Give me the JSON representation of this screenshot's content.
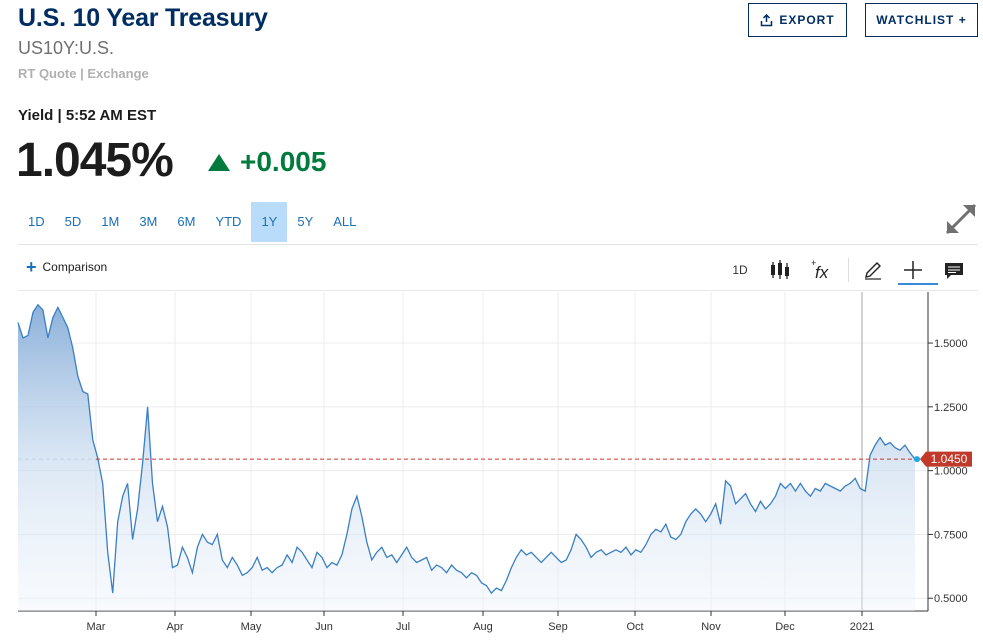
{
  "header": {
    "title": "U.S. 10 Year Treasury",
    "symbol": "US10Y:U.S.",
    "quote_source": "RT Quote | Exchange",
    "export_label": "EXPORT",
    "watchlist_label": "WATCHLIST +"
  },
  "quote": {
    "yield_label": "Yield | 5:52 AM EST",
    "price": "1.045%",
    "change": "+0.005",
    "change_color": "#007a3d"
  },
  "ranges": [
    "1D",
    "5D",
    "1M",
    "3M",
    "6M",
    "YTD",
    "1Y",
    "5Y",
    "ALL"
  ],
  "active_range": "1Y",
  "toolbar": {
    "comparison_label": "Comparison",
    "interval_label": "1D",
    "icons": [
      "candles-icon",
      "fx-icon",
      "draw-pencil-icon",
      "crosshair-icon",
      "comment-icon"
    ]
  },
  "colors": {
    "brand": "#002d62",
    "line": "#3a7fc4",
    "ref_line": "#d0312d",
    "badge": "#c0392b",
    "active_tab_bg": "#b9dcfb"
  },
  "chart_data": {
    "type": "area",
    "x_axis_labels": [
      "Mar",
      "Apr",
      "May",
      "Jun",
      "Jul",
      "Aug",
      "Sep",
      "Oct",
      "Nov",
      "Dec",
      "2021"
    ],
    "y_ticks": [
      "1.5000",
      "1.2500",
      "1.0000",
      "0.7500",
      "0.5000"
    ],
    "ylim": [
      0.45,
      1.7
    ],
    "current_value_label": "1.0450",
    "reference_value": 1.045,
    "series": [
      {
        "values": [
          1.58,
          1.52,
          1.53,
          1.62,
          1.65,
          1.63,
          1.52,
          1.6,
          1.64,
          1.6,
          1.56,
          1.48,
          1.37,
          1.31,
          1.3,
          1.12,
          1.05,
          0.95,
          0.68,
          0.52,
          0.8,
          0.9,
          0.95,
          0.73,
          0.85,
          1.03,
          1.25,
          0.95,
          0.8,
          0.86,
          0.78,
          0.62,
          0.63,
          0.7,
          0.66,
          0.6,
          0.7,
          0.75,
          0.72,
          0.71,
          0.75,
          0.65,
          0.62,
          0.66,
          0.63,
          0.59,
          0.6,
          0.62,
          0.66,
          0.61,
          0.62,
          0.6,
          0.62,
          0.63,
          0.67,
          0.64,
          0.7,
          0.68,
          0.65,
          0.62,
          0.68,
          0.66,
          0.62,
          0.64,
          0.63,
          0.67,
          0.75,
          0.85,
          0.9,
          0.82,
          0.72,
          0.65,
          0.68,
          0.7,
          0.66,
          0.67,
          0.64,
          0.67,
          0.7,
          0.66,
          0.64,
          0.65,
          0.66,
          0.61,
          0.63,
          0.62,
          0.6,
          0.63,
          0.61,
          0.6,
          0.58,
          0.6,
          0.59,
          0.56,
          0.55,
          0.52,
          0.54,
          0.53,
          0.57,
          0.62,
          0.66,
          0.69,
          0.67,
          0.68,
          0.66,
          0.64,
          0.66,
          0.68,
          0.66,
          0.64,
          0.65,
          0.69,
          0.75,
          0.73,
          0.7,
          0.66,
          0.68,
          0.69,
          0.67,
          0.68,
          0.69,
          0.68,
          0.7,
          0.67,
          0.69,
          0.68,
          0.71,
          0.75,
          0.77,
          0.76,
          0.79,
          0.74,
          0.73,
          0.75,
          0.8,
          0.83,
          0.85,
          0.83,
          0.8,
          0.83,
          0.87,
          0.79,
          0.96,
          0.94,
          0.87,
          0.89,
          0.91,
          0.87,
          0.84,
          0.88,
          0.85,
          0.87,
          0.9,
          0.95,
          0.93,
          0.95,
          0.92,
          0.95,
          0.92,
          0.9,
          0.93,
          0.92,
          0.95,
          0.94,
          0.93,
          0.92,
          0.94,
          0.95,
          0.97,
          0.93,
          0.92,
          1.06,
          1.1,
          1.13,
          1.1,
          1.11,
          1.09,
          1.08,
          1.1,
          1.07,
          1.045
        ]
      }
    ]
  }
}
